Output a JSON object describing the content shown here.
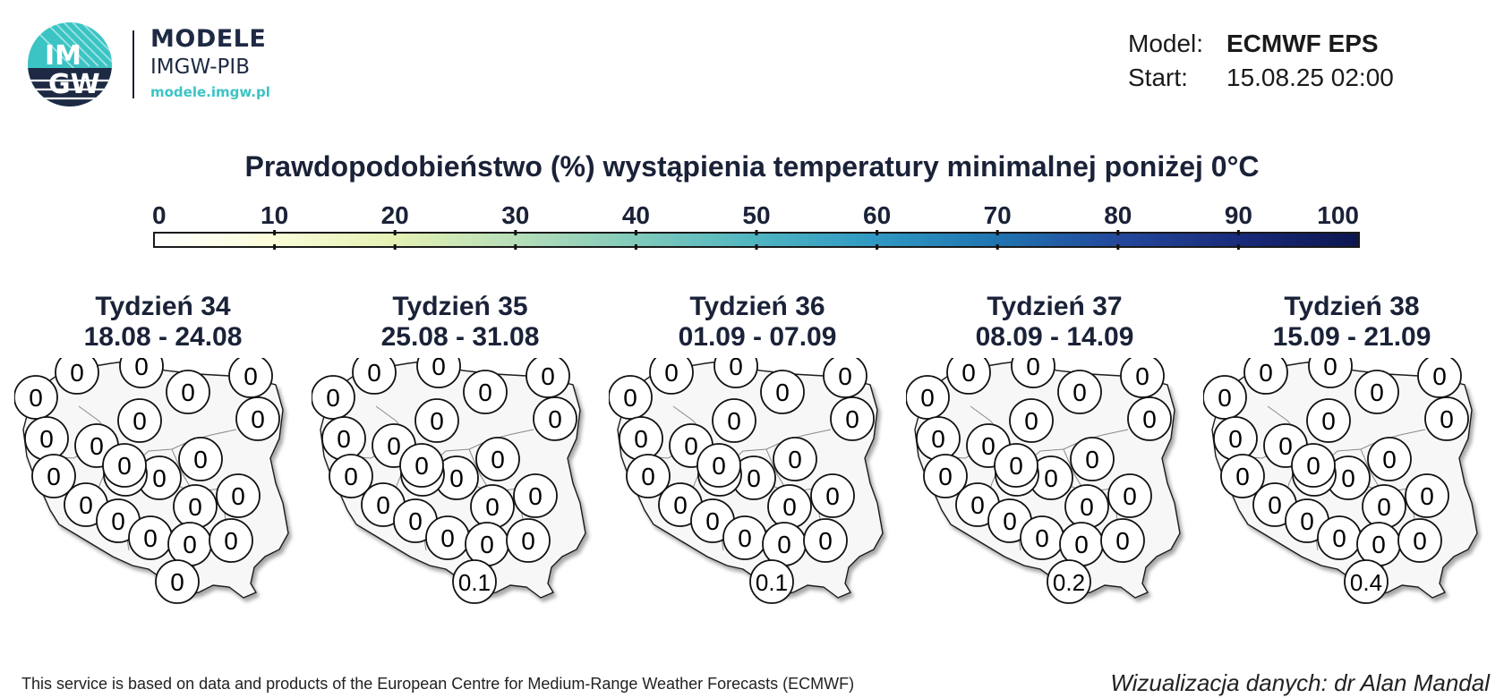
{
  "logo": {
    "line1": "MODELE",
    "line2": "IMGW-PIB",
    "url": "modele.imgw.pl",
    "mark_top": "IM",
    "mark_bottom": "GW",
    "colors": {
      "navy": "#1e2a44",
      "teal": "#3cc4c4"
    }
  },
  "header": {
    "model_label": "Model:",
    "model_value": "ECMWF EPS",
    "start_label": "Start:",
    "start_value": "15.08.25 02:00"
  },
  "title": "Prawdopodobieństwo (%) wystąpienia temperatury minimalnej poniżej 0°C",
  "colorbar": {
    "ticks": [
      "0",
      "10",
      "20",
      "30",
      "40",
      "50",
      "60",
      "70",
      "80",
      "90",
      "100"
    ],
    "stops": [
      "#ffffff",
      "#fbfcd8",
      "#e4f1b3",
      "#b6deb8",
      "#80cabb",
      "#4fb5c1",
      "#2f98c2",
      "#2074b0",
      "#23489b",
      "#1a2b7b",
      "#0c1650"
    ]
  },
  "weeks": [
    {
      "week": "Tydzień 34",
      "dates": "18.08 - 24.08",
      "values": [
        "0",
        "0",
        "0",
        "0",
        "0",
        "0",
        "0",
        "0",
        "0",
        "0",
        "0",
        "0",
        "0",
        "0",
        "0",
        "0",
        "0",
        "0",
        "0",
        "0",
        "0",
        "0"
      ]
    },
    {
      "week": "Tydzień 35",
      "dates": "25.08 - 31.08",
      "values": [
        "0",
        "0",
        "0",
        "0",
        "0",
        "0",
        "0",
        "0",
        "0",
        "0",
        "0",
        "0",
        "0",
        "0",
        "0",
        "0",
        "0",
        "0",
        "0",
        "0",
        "0",
        "0.1"
      ]
    },
    {
      "week": "Tydzień 36",
      "dates": "01.09 - 07.09",
      "values": [
        "0",
        "0",
        "0",
        "0",
        "0",
        "0",
        "0",
        "0",
        "0",
        "0",
        "0",
        "0",
        "0",
        "0",
        "0",
        "0",
        "0",
        "0",
        "0",
        "0",
        "0",
        "0.1"
      ]
    },
    {
      "week": "Tydzień 37",
      "dates": "08.09 - 14.09",
      "values": [
        "0",
        "0",
        "0",
        "0",
        "0",
        "0",
        "0",
        "0",
        "0",
        "0",
        "0",
        "0",
        "0",
        "0",
        "0",
        "0",
        "0",
        "0",
        "0",
        "0",
        "0",
        "0.2"
      ]
    },
    {
      "week": "Tydzień 38",
      "dates": "15.09 - 21.09",
      "values": [
        "0",
        "0",
        "0",
        "0",
        "0",
        "0",
        "0",
        "0",
        "0",
        "0",
        "0",
        "0",
        "0",
        "0",
        "0",
        "0",
        "0",
        "0",
        "0",
        "0",
        "0",
        "0.4"
      ]
    }
  ],
  "footer": {
    "left": "This service is based on data and products of the European Centre for Medium-Range Weather Forecasts (ECMWF)",
    "right": "Wizualizacja danych: dr Alan Mandal"
  }
}
